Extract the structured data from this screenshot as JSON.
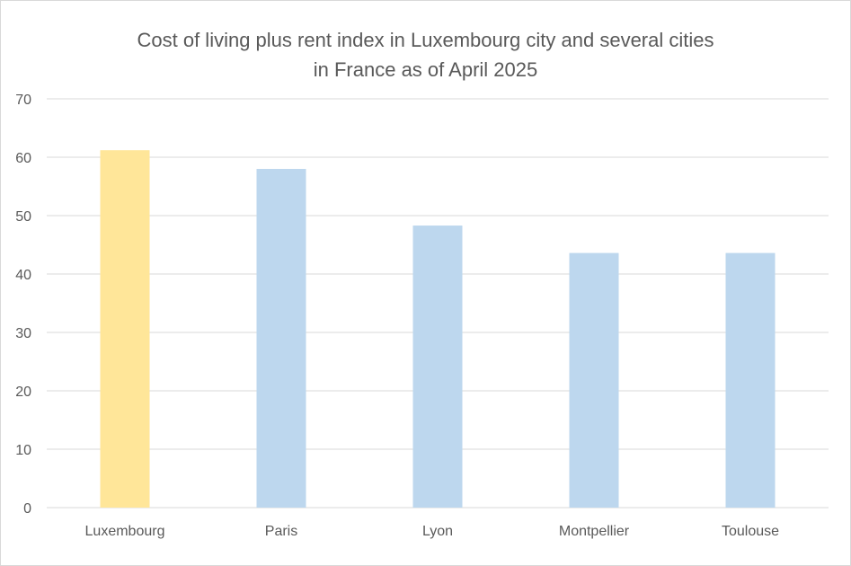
{
  "chart_data": {
    "type": "bar",
    "title_lines": [
      "Cost of living plus rent index in Luxembourg city and several cities",
      "in France as of April 2025"
    ],
    "xlabel": "",
    "ylabel": "",
    "categories": [
      "Luxembourg",
      "Paris",
      "Lyon",
      "Montpellier",
      "Toulouse"
    ],
    "values": [
      61.2,
      58.0,
      48.3,
      43.6,
      43.6
    ],
    "ylim": [
      0,
      70
    ],
    "yticks": [
      0,
      10,
      20,
      30,
      40,
      50,
      60,
      70
    ],
    "grid": true,
    "legend": "none",
    "colors": {
      "highlight": "#ffe699",
      "default": "#bdd7ee",
      "gridline": "#d9d9d9",
      "text": "#595959"
    },
    "highlight_index": 0
  }
}
